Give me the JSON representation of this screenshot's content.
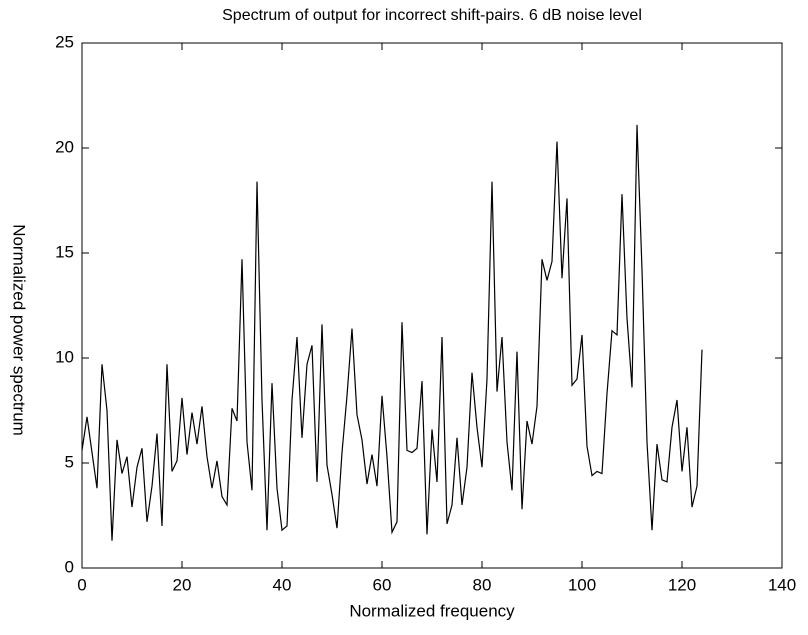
{
  "chart_data": {
    "type": "line",
    "title": "Spectrum of output for incorrect shift-pairs. 6 dB noise level",
    "x_label": "Normalized frequency",
    "y_label": "Normalized power spectrum",
    "x": [
      0,
      1,
      2,
      3,
      4,
      5,
      6,
      7,
      8,
      9,
      10,
      11,
      12,
      13,
      14,
      15,
      16,
      17,
      18,
      19,
      20,
      21,
      22,
      23,
      24,
      25,
      26,
      27,
      28,
      29,
      30,
      31,
      32,
      33,
      34,
      35,
      36,
      37,
      38,
      39,
      40,
      41,
      42,
      43,
      44,
      45,
      46,
      47,
      48,
      49,
      50,
      51,
      52,
      53,
      54,
      55,
      56,
      57,
      58,
      59,
      60,
      61,
      62,
      63,
      64,
      65,
      66,
      67,
      68,
      69,
      70,
      71,
      72,
      73,
      74,
      75,
      76,
      77,
      78,
      79,
      80,
      81,
      82,
      83,
      84,
      85,
      86,
      87,
      88,
      89,
      90,
      91,
      92,
      93,
      94,
      95,
      96,
      97,
      98,
      99,
      100,
      101,
      102,
      103,
      104,
      105,
      106,
      107,
      108,
      109,
      110,
      111,
      112,
      113,
      114,
      115,
      116,
      117,
      118,
      119,
      120,
      121,
      122,
      123,
      124
    ],
    "series": [
      {
        "color": "#000000",
        "values": [
          5.6,
          7.2,
          5.5,
          3.8,
          9.7,
          7.5,
          1.3,
          6.1,
          4.5,
          5.3,
          2.9,
          4.8,
          5.7,
          2.2,
          3.9,
          6.4,
          2.0,
          9.7,
          4.6,
          5.1,
          8.1,
          5.4,
          7.4,
          5.9,
          7.7,
          5.3,
          3.8,
          5.1,
          3.4,
          3.0,
          7.6,
          7.0,
          14.7,
          6.0,
          3.7,
          18.4,
          8.0,
          1.8,
          8.8,
          3.8,
          1.8,
          2.0,
          8.0,
          11.0,
          6.2,
          9.7,
          10.6,
          4.1,
          11.6,
          4.9,
          3.5,
          1.9,
          5.5,
          8.2,
          11.4,
          7.3,
          6.1,
          4.0,
          5.4,
          3.9,
          8.2,
          5.3,
          1.7,
          2.2,
          11.7,
          5.6,
          5.5,
          5.7,
          8.9,
          1.6,
          6.6,
          4.1,
          11.0,
          2.1,
          3.0,
          6.2,
          3.0,
          4.8,
          9.3,
          6.7,
          4.8,
          9.0,
          18.4,
          8.4,
          11.0,
          6.0,
          3.7,
          10.3,
          2.8,
          7.0,
          5.9,
          7.7,
          14.7,
          13.7,
          14.6,
          20.3,
          13.8,
          17.6,
          8.7,
          9.0,
          11.1,
          5.8,
          4.4,
          4.6,
          4.5,
          8.3,
          11.3,
          11.1,
          17.8,
          11.9,
          8.6,
          21.1,
          14.2,
          6.0,
          1.8,
          5.9,
          4.2,
          4.1,
          6.7,
          8.0,
          4.6,
          6.7,
          2.9,
          3.9,
          10.4
        ]
      }
    ],
    "xlim": [
      0,
      140
    ],
    "xticks": [
      0,
      20,
      40,
      60,
      80,
      100,
      120,
      140
    ],
    "ylim": [
      0,
      25
    ],
    "yticks": [
      0,
      5,
      10,
      15,
      20,
      25
    ]
  }
}
